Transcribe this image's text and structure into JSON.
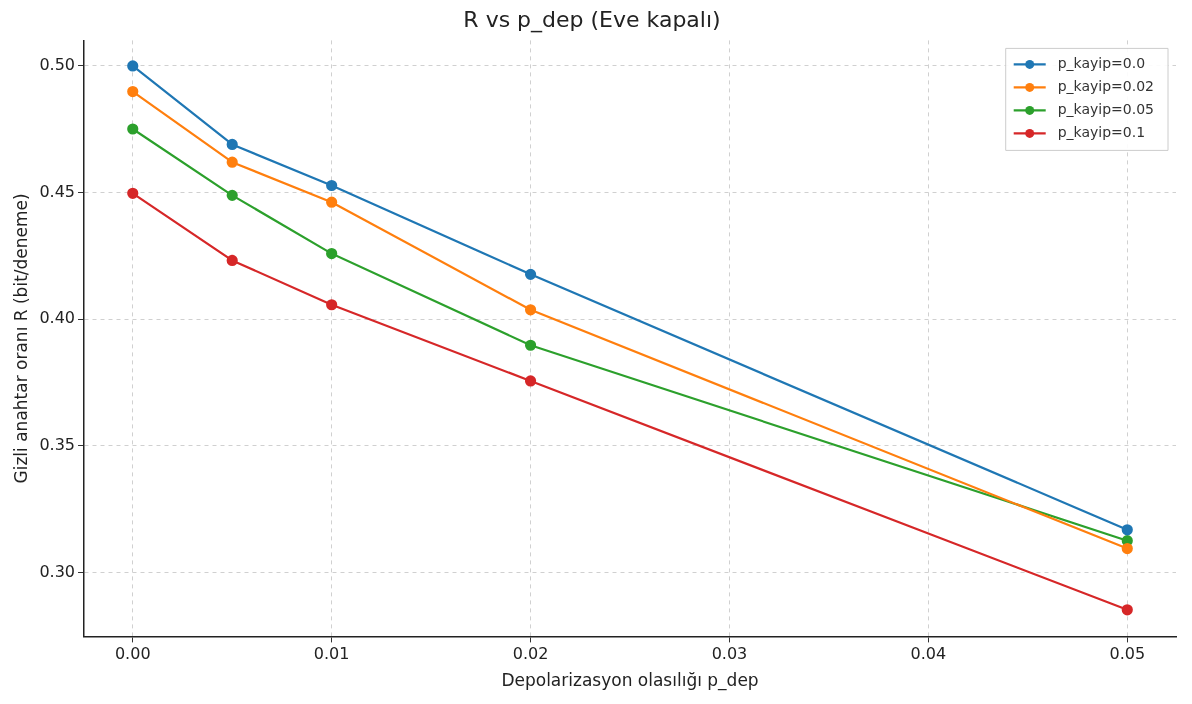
{
  "chart_data": {
    "type": "line",
    "title": "R vs p_dep (Eve kapalı)",
    "xlabel": "Depolarizasyon olasılığı p_dep",
    "ylabel": "Gizli anahtar oranı R (bit/deneme)",
    "x": [
      0,
      0.005,
      0.01,
      0.02,
      0.05
    ],
    "series": [
      {
        "name": "p_kayip=0.0",
        "color": "#1f77b4",
        "values": [
          0.5,
          0.469,
          0.4528,
          0.4177,
          0.3168
        ]
      },
      {
        "name": "p_kayip=0.02",
        "color": "#ff7f0e",
        "values": [
          0.4899,
          0.462,
          0.4462,
          0.4037,
          0.3094
        ]
      },
      {
        "name": "p_kayip=0.05",
        "color": "#2ca02c",
        "values": [
          0.4751,
          0.4489,
          0.4259,
          0.3897,
          0.3125
        ]
      },
      {
        "name": "p_kayip=0.1",
        "color": "#d62728",
        "values": [
          0.4497,
          0.4232,
          0.4057,
          0.3756,
          0.2852
        ]
      }
    ],
    "xlim": [
      -0.00245,
      0.05245
    ],
    "xticks": [
      {
        "value": 0,
        "label": "0.00"
      },
      {
        "value": 0.01,
        "label": "0.01"
      },
      {
        "value": 0.02,
        "label": "0.02"
      },
      {
        "value": 0.03,
        "label": "0.03"
      },
      {
        "value": 0.04,
        "label": "0.04"
      },
      {
        "value": 0.05,
        "label": "0.05"
      }
    ],
    "ylim": [
      0.2747,
      0.5101
    ],
    "yticks": [
      {
        "value": 0.3,
        "label": "0.30"
      },
      {
        "value": 0.35,
        "label": "0.35"
      },
      {
        "value": 0.4,
        "label": "0.40"
      },
      {
        "value": 0.45,
        "label": "0.45"
      },
      {
        "value": 0.5,
        "label": "0.50"
      }
    ],
    "grid": true,
    "legend": "top right",
    "marker": "circle",
    "line_style": "solid"
  }
}
